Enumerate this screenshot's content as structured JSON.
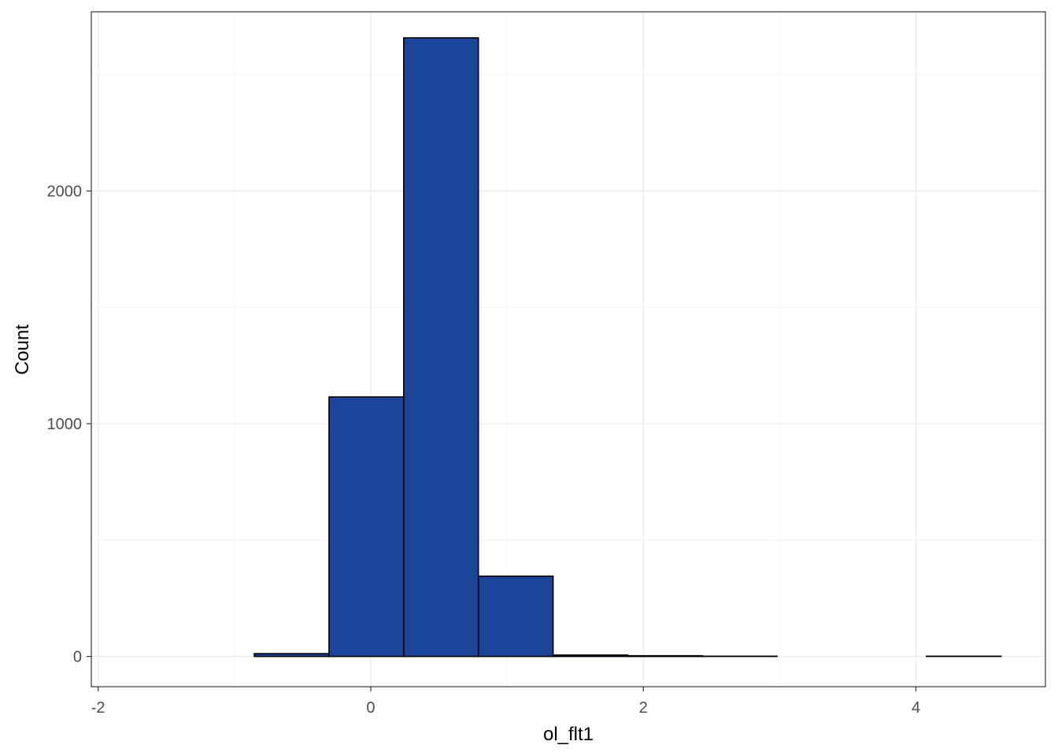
{
  "chart_data": {
    "type": "bar",
    "title": "",
    "xlabel": "ol_flt1",
    "ylabel": "Count",
    "xlim": [
      -2.05,
      4.95
    ],
    "ylim": [
      -130,
      2770
    ],
    "x_ticks": [
      -2,
      0,
      2,
      4
    ],
    "y_ticks": [
      0,
      1000,
      2000
    ],
    "x_minor_gridlines": [
      -1,
      1,
      3
    ],
    "y_minor_gridlines": [
      500,
      1500,
      2500
    ],
    "grid": true,
    "bin_width": 0.5478,
    "bins": [
      {
        "x0": -1.95,
        "x1": -1.402,
        "count": 0
      },
      {
        "x0": -1.402,
        "x1": -0.854,
        "count": 0
      },
      {
        "x0": -0.854,
        "x1": -0.306,
        "count": 12
      },
      {
        "x0": -0.306,
        "x1": 0.242,
        "count": 1115
      },
      {
        "x0": 0.242,
        "x1": 0.79,
        "count": 2658
      },
      {
        "x0": 0.79,
        "x1": 1.338,
        "count": 345
      },
      {
        "x0": 1.338,
        "x1": 1.886,
        "count": 6
      },
      {
        "x0": 1.886,
        "x1": 2.434,
        "count": 3
      },
      {
        "x0": 2.434,
        "x1": 2.981,
        "count": 1
      },
      {
        "x0": 2.981,
        "x1": 3.529,
        "count": 0
      },
      {
        "x0": 3.529,
        "x1": 4.077,
        "count": 0
      },
      {
        "x0": 4.077,
        "x1": 4.625,
        "count": 1
      }
    ],
    "colors": {
      "bar_fill": "#1a4598",
      "bar_stroke": "#000000",
      "panel_border": "#333333",
      "grid_major": "#ebebeb",
      "grid_minor": "#f3f3f3",
      "tick_label": "#4d4d4d",
      "axis_title": "#000000"
    }
  }
}
